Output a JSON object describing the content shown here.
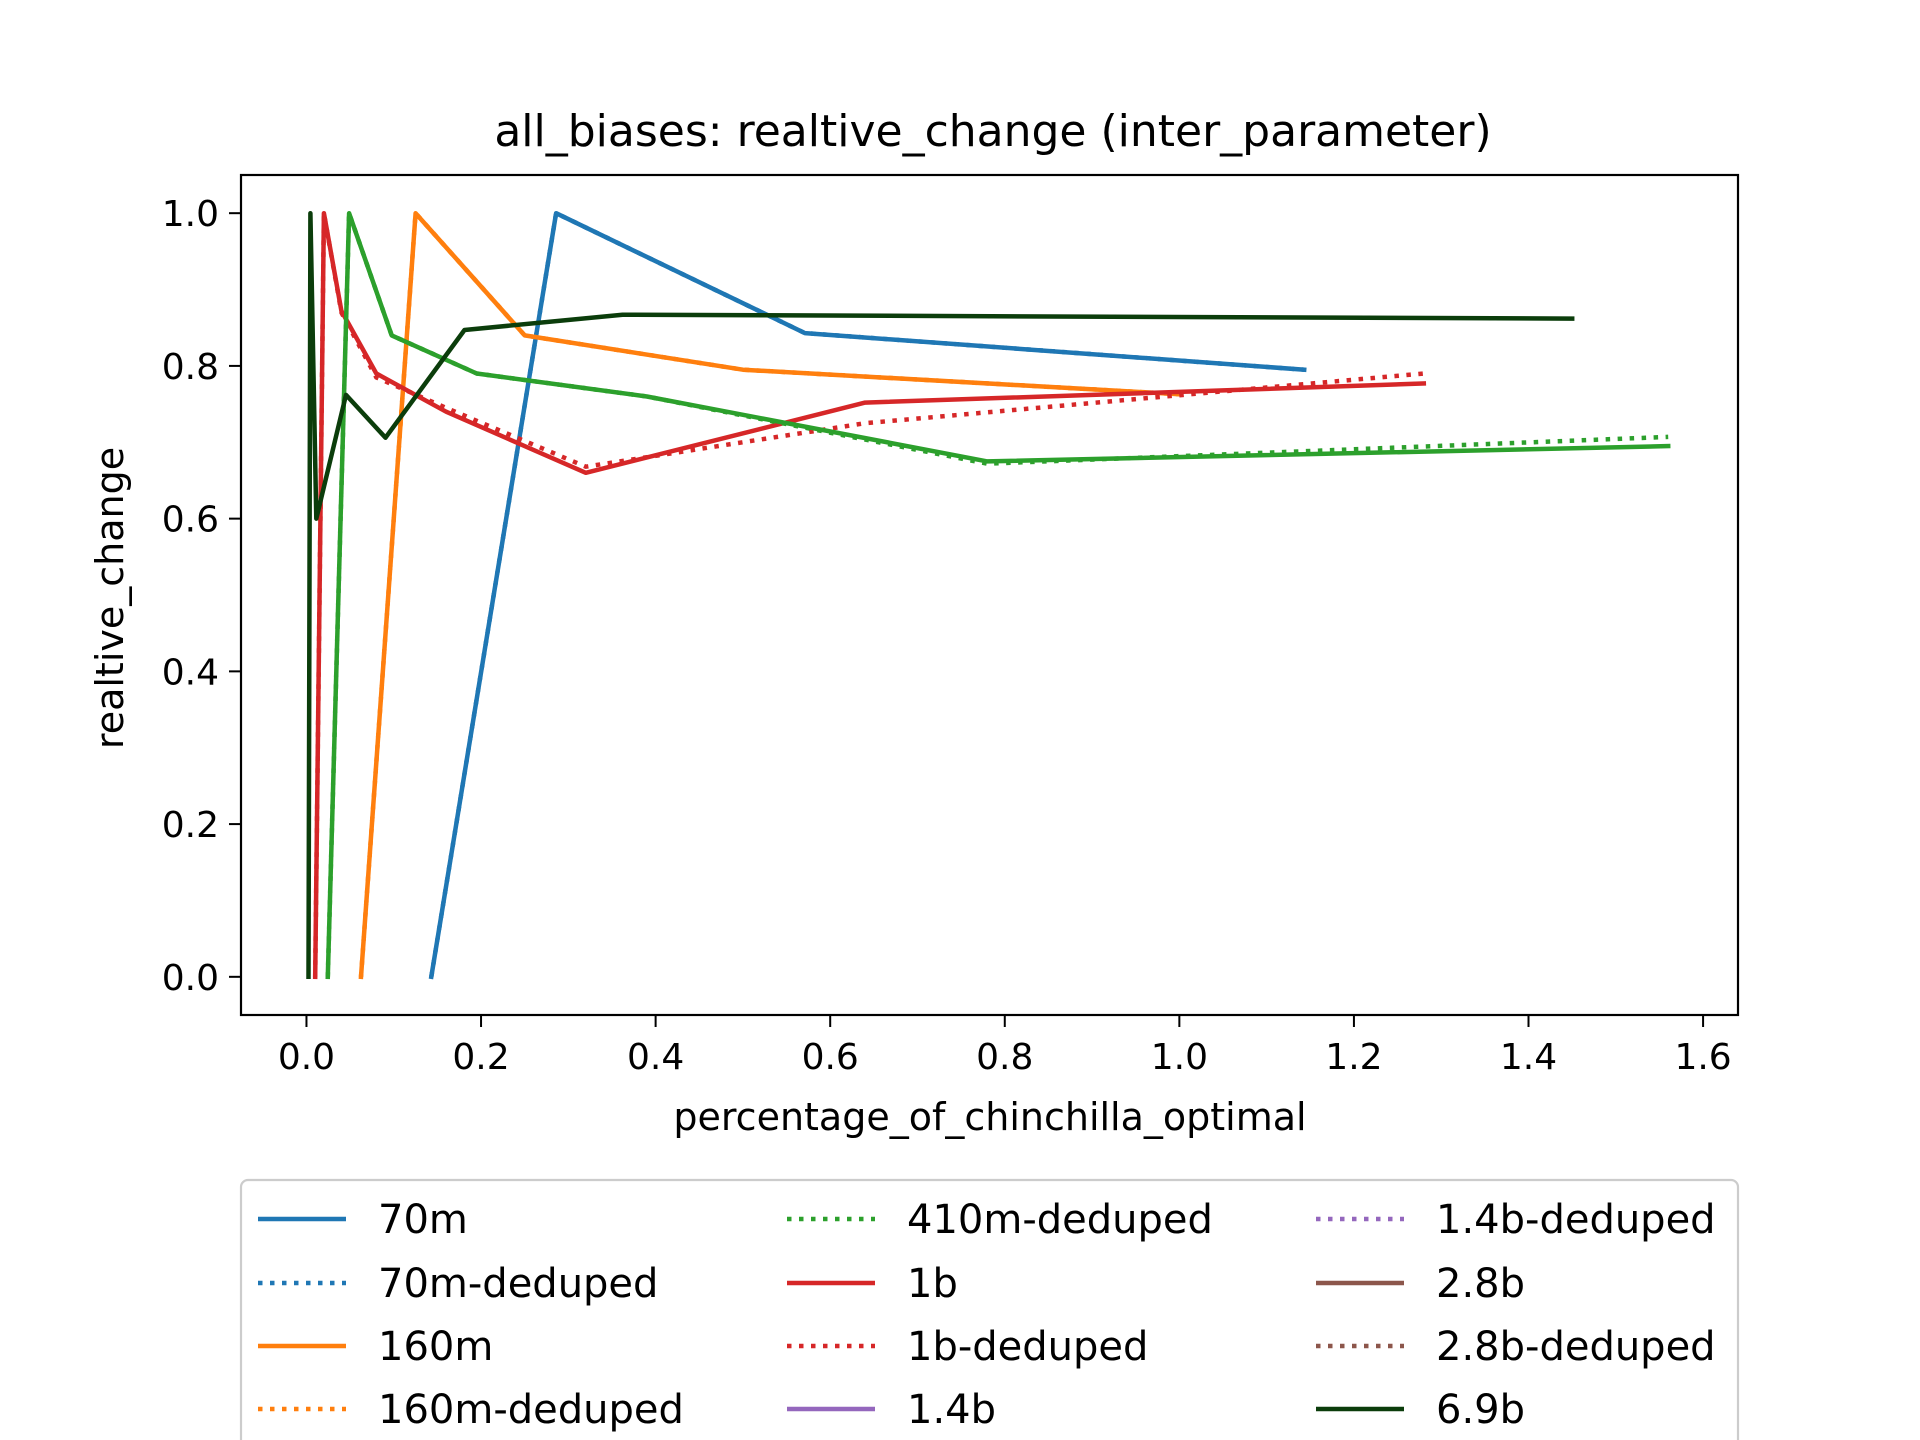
{
  "chart_data": {
    "type": "line",
    "title": "all_biases: realtive_change (inter_parameter)",
    "xlabel": "percentage_of_chinchilla_optimal",
    "ylabel": "realtive_change",
    "xlim": [
      -0.075,
      1.64
    ],
    "ylim": [
      -0.05,
      1.05
    ],
    "xticks": [
      0.0,
      0.2,
      0.4,
      0.6,
      0.8,
      1.0,
      1.2,
      1.4,
      1.6
    ],
    "xtick_labels": [
      "0.0",
      "0.2",
      "0.4",
      "0.6",
      "0.8",
      "1.0",
      "1.2",
      "1.4",
      "1.6"
    ],
    "yticks": [
      0.0,
      0.2,
      0.4,
      0.6,
      0.8,
      1.0
    ],
    "ytick_labels": [
      "0.0",
      "0.2",
      "0.4",
      "0.6",
      "0.8",
      "1.0"
    ],
    "grid": false,
    "legend_position": "below-center",
    "series": [
      {
        "name": "70m",
        "color": "#1f77b4",
        "dash": "solid",
        "x": [
          0.143,
          0.286,
          0.571,
          1.143
        ],
        "y": [
          0.0,
          1.0,
          0.843,
          0.795
        ]
      },
      {
        "name": "70m-deduped",
        "color": "#1f77b4",
        "dash": "dotted",
        "x": [
          0.143,
          0.286,
          0.571,
          1.143
        ],
        "y": [
          0.0,
          1.0,
          0.843,
          0.795
        ]
      },
      {
        "name": "160m",
        "color": "#ff7f0e",
        "dash": "solid",
        "x": [
          0.0625,
          0.125,
          0.25,
          0.5,
          1.0
        ],
        "y": [
          0.0,
          1.0,
          0.84,
          0.795,
          0.763
        ]
      },
      {
        "name": "160m-deduped",
        "color": "#ff7f0e",
        "dash": "dotted",
        "x": [
          0.0625,
          0.125,
          0.25,
          0.5,
          1.0
        ],
        "y": [
          0.0,
          1.0,
          0.84,
          0.795,
          0.763
        ]
      },
      {
        "name": "410m-deduped",
        "color": "#2ca02c",
        "dash": "dotted",
        "x": [
          0.0244,
          0.0488,
          0.0976,
          0.195,
          0.39,
          0.78,
          1.56
        ],
        "y": [
          0.0,
          1.0,
          0.84,
          0.79,
          0.76,
          0.672,
          0.707
        ]
      },
      {
        "name": "410m",
        "color": "#2ca02c",
        "dash": "solid",
        "legend": false,
        "x": [
          0.0244,
          0.0488,
          0.0976,
          0.195,
          0.39,
          0.78,
          1.56
        ],
        "y": [
          0.0,
          1.0,
          0.84,
          0.79,
          0.76,
          0.675,
          0.695
        ]
      },
      {
        "name": "1b",
        "color": "#d62728",
        "dash": "solid",
        "x": [
          0.01,
          0.02,
          0.04,
          0.08,
          0.16,
          0.32,
          0.64,
          1.28
        ],
        "y": [
          0.0,
          1.0,
          0.872,
          0.79,
          0.74,
          0.66,
          0.752,
          0.777
        ]
      },
      {
        "name": "1b-deduped",
        "color": "#d62728",
        "dash": "dotted",
        "x": [
          0.01,
          0.02,
          0.04,
          0.08,
          0.16,
          0.32,
          0.64,
          1.28
        ],
        "y": [
          0.0,
          1.0,
          0.87,
          0.785,
          0.745,
          0.668,
          0.725,
          0.79
        ]
      },
      {
        "name": "1.4b",
        "color": "#9467bd",
        "dash": "solid",
        "x": [],
        "y": []
      },
      {
        "name": "1.4b-deduped",
        "color": "#9467bd",
        "dash": "dotted",
        "x": [],
        "y": []
      },
      {
        "name": "2.8b",
        "color": "#8c564b",
        "dash": "solid",
        "x": [],
        "y": []
      },
      {
        "name": "2.8b-deduped",
        "color": "#8c564b",
        "dash": "dotted",
        "x": [],
        "y": []
      },
      {
        "name": "6.9b",
        "color": "#0b3d0b",
        "dash": "solid",
        "x": [
          0.0023,
          0.0045,
          0.0113,
          0.0453,
          0.0906,
          0.181,
          0.362,
          1.45
        ],
        "y": [
          0.0,
          1.0,
          0.6,
          0.762,
          0.706,
          0.847,
          0.867,
          0.862
        ]
      }
    ]
  }
}
